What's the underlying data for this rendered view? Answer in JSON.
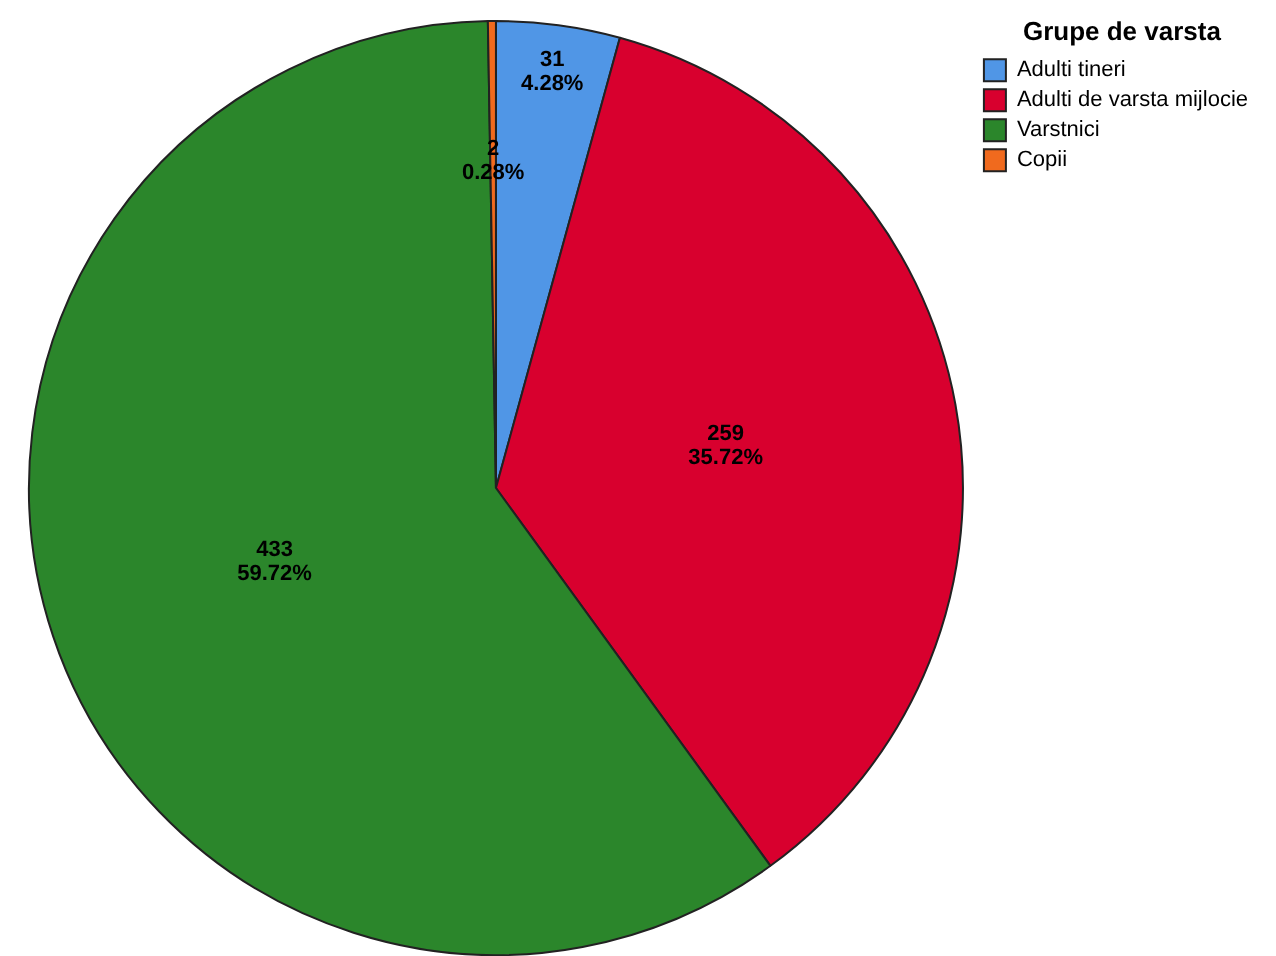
{
  "chart_data": {
    "type": "pie",
    "legend_title": "Grupe de varsta",
    "categories": [
      "Adulti tineri",
      "Adulti de varsta mijlocie",
      "Varstnici",
      "Copii"
    ],
    "values": [
      31,
      259,
      433,
      2
    ],
    "colors": [
      "#5096e6",
      "#d8002e",
      "#2b862b",
      "#f06a1e"
    ],
    "value_labels": [
      "31\n4.28%",
      "259\n35.72%",
      "433\n59.72%",
      "2\n0.28%"
    ],
    "legend": "top right"
  }
}
